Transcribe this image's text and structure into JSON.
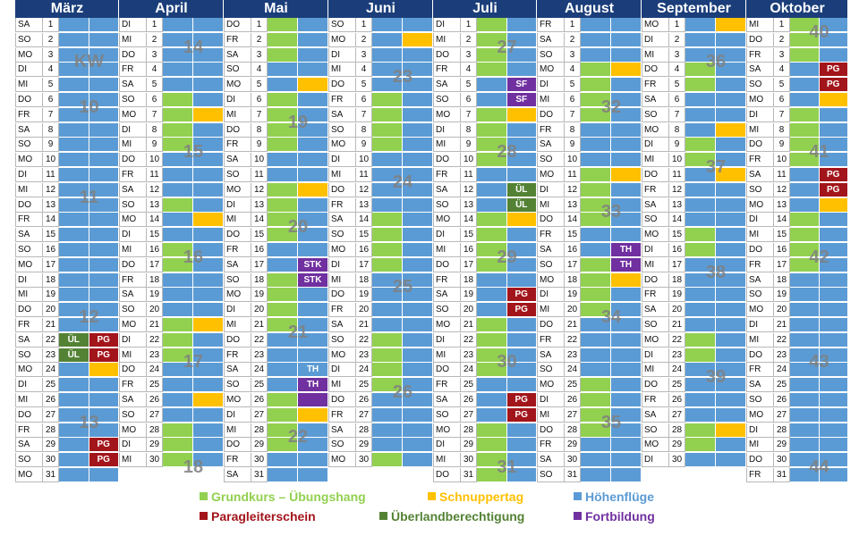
{
  "calendar": {
    "months": [
      {
        "name": "März",
        "days": 31,
        "start": "SA",
        "a": "BBBBBBBBBBBBBBBBBBBBBDDBBBBBBBB",
        "b": "BBBBBBBBBBBBBBBBBBBBBRRYBBBBRRB",
        "tags": {
          "22": [
            "ÜL",
            "PG"
          ],
          "23": [
            "ÜL",
            "PG"
          ],
          "29": [
            "",
            "PG"
          ],
          "30": [
            "",
            "PG"
          ]
        }
      },
      {
        "name": "April",
        "days": 30,
        "start": "DI",
        "a": "BBBBBGGGGBBBGBBGGBBBGGGBBBBGGG",
        "b": "BBBBBBYBBBBBBYBBBBBBYBBBBYBBBB",
        "tags": {}
      },
      {
        "name": "Mai",
        "days": 31,
        "start": "DO",
        "a": "GGGBBGGGGBBGGGGBBGGGGBBBBGGGGBB",
        "b": "BBBBYBBBBBBYBBBBPPBBBBBBPPYBBBB",
        "tags": {
          "17": [
            "",
            "STK"
          ],
          "18": [
            "",
            "STK"
          ],
          "24": [
            "",
            "TH"
          ],
          "25": [
            "",
            "TH"
          ]
        }
      },
      {
        "name": "Juni",
        "days": 30,
        "start": "SO",
        "a": "BBBBBGGGGBBBBGGGGBBBBGGGGBBBBG",
        "b": "BYBBBBBBBBBBBBBBBBBBBBBBBBBBBB",
        "tags": {}
      },
      {
        "name": "Juli",
        "days": 31,
        "start": "DI",
        "a": "GGGGBBGGGGBBBGGGGBBBGGGGBBBGGGG",
        "b": "BBBBPPYBBBBDDYBBBBRRBBBBBRRBBBB",
        "tags": {
          "5": [
            "",
            "SF"
          ],
          "6": [
            "",
            "SF"
          ],
          "12": [
            "",
            "ÜL"
          ],
          "13": [
            "",
            "ÜL"
          ],
          "19": [
            "",
            "PG"
          ],
          "20": [
            "",
            "PG"
          ],
          "26": [
            "",
            "PG"
          ],
          "27": [
            "",
            "PG"
          ]
        }
      },
      {
        "name": "August",
        "days": 31,
        "start": "FR",
        "a": "BBBGGGGBBBGGGGBBGGGGBBBBGGGGBBB",
        "b": "BBBYBBBBBBYBBBBPPYBBBBBBBBBBBBB",
        "tags": {
          "16": [
            "",
            "TH"
          ],
          "17": [
            "",
            "TH"
          ]
        }
      },
      {
        "name": "September",
        "days": 30,
        "start": "MO",
        "a": "BBBGGBBBGGBBBBGGBBBBBGGBBBBGGB",
        "b": "YBBBBBBYBBYBBBBBBBBBBBBBBBBYBB",
        "tags": {}
      },
      {
        "name": "Oktober",
        "days": 31,
        "start": "MI",
        "a": "GGGBBBGGGGBBBGGGGBBBBBBBBBBBBBB",
        "b": "BBBRRYBBBBRRYBBBBBBBBBBBBBBBBBB",
        "tags": {
          "4": [
            "",
            "PG"
          ],
          "5": [
            "",
            "PG"
          ],
          "11": [
            "",
            "PG"
          ],
          "12": [
            "",
            "PG"
          ]
        }
      }
    ],
    "kw": [
      {
        "m": 0,
        "row": 3,
        "t": "KW"
      },
      {
        "m": 0,
        "row": 6,
        "t": "10"
      },
      {
        "m": 0,
        "row": 12,
        "t": "11"
      },
      {
        "m": 0,
        "row": 20,
        "t": "12"
      },
      {
        "m": 0,
        "row": 27,
        "t": "13"
      },
      {
        "m": 1,
        "row": 2,
        "t": "14"
      },
      {
        "m": 1,
        "row": 9,
        "t": "15"
      },
      {
        "m": 1,
        "row": 16,
        "t": "16"
      },
      {
        "m": 1,
        "row": 23,
        "t": "17"
      },
      {
        "m": 1,
        "row": 30,
        "t": "18"
      },
      {
        "m": 2,
        "row": 7,
        "t": "19"
      },
      {
        "m": 2,
        "row": 14,
        "t": "20"
      },
      {
        "m": 2,
        "row": 21,
        "t": "21"
      },
      {
        "m": 2,
        "row": 28,
        "t": "22"
      },
      {
        "m": 3,
        "row": 4,
        "t": "23"
      },
      {
        "m": 3,
        "row": 11,
        "t": "24"
      },
      {
        "m": 3,
        "row": 18,
        "t": "25"
      },
      {
        "m": 3,
        "row": 25,
        "t": "26"
      },
      {
        "m": 4,
        "row": 2,
        "t": "27"
      },
      {
        "m": 4,
        "row": 9,
        "t": "28"
      },
      {
        "m": 4,
        "row": 16,
        "t": "29"
      },
      {
        "m": 4,
        "row": 23,
        "t": "30"
      },
      {
        "m": 4,
        "row": 30,
        "t": "31"
      },
      {
        "m": 5,
        "row": 6,
        "t": "32"
      },
      {
        "m": 5,
        "row": 13,
        "t": "33"
      },
      {
        "m": 5,
        "row": 20,
        "t": "34"
      },
      {
        "m": 5,
        "row": 27,
        "t": "35"
      },
      {
        "m": 6,
        "row": 3,
        "t": "36"
      },
      {
        "m": 6,
        "row": 10,
        "t": "37"
      },
      {
        "m": 6,
        "row": 17,
        "t": "38"
      },
      {
        "m": 6,
        "row": 24,
        "t": "39"
      },
      {
        "m": 7,
        "row": 1,
        "t": "40"
      },
      {
        "m": 7,
        "row": 9,
        "t": "41"
      },
      {
        "m": 7,
        "row": 16,
        "t": "42"
      },
      {
        "m": 7,
        "row": 23,
        "t": "43"
      },
      {
        "m": 7,
        "row": 30,
        "t": "44"
      }
    ],
    "weekdays": [
      "MO",
      "DI",
      "MI",
      "DO",
      "FR",
      "SA",
      "SO"
    ]
  },
  "legend": [
    {
      "label": "Grundkurs – Übungshang",
      "color": "#92d050"
    },
    {
      "label": "Schnuppertag",
      "color": "#ffc000"
    },
    {
      "label": "Höhenflüge",
      "color": "#5b9bd5"
    },
    {
      "label": "Paragleiterschein",
      "color": "#a2151b"
    },
    {
      "label": "Überlandberechtigung",
      "color": "#548235"
    },
    {
      "label": "Fortbildung",
      "color": "#7030a0"
    }
  ]
}
